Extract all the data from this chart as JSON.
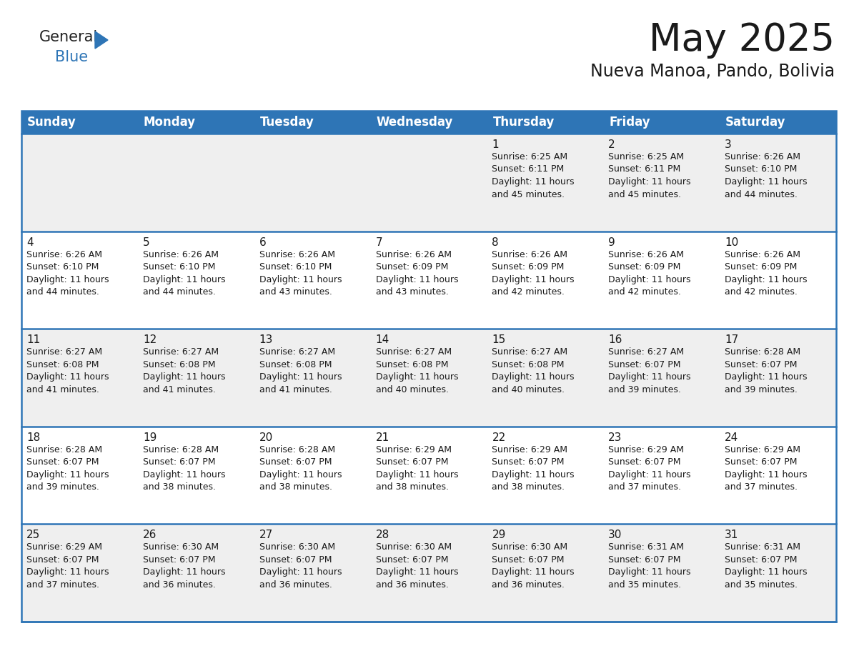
{
  "title": "May 2025",
  "subtitle": "Nueva Manoa, Pando, Bolivia",
  "header_bg": "#2E75B6",
  "header_text": "#FFFFFF",
  "row_bg_light": "#EFEFEF",
  "row_bg_white": "#FFFFFF",
  "border_color": "#2E75B6",
  "text_color": "#1a1a1a",
  "days_of_week": [
    "Sunday",
    "Monday",
    "Tuesday",
    "Wednesday",
    "Thursday",
    "Friday",
    "Saturday"
  ],
  "calendar_data": [
    [
      "",
      "",
      "",
      "",
      "1\nSunrise: 6:25 AM\nSunset: 6:11 PM\nDaylight: 11 hours\nand 45 minutes.",
      "2\nSunrise: 6:25 AM\nSunset: 6:11 PM\nDaylight: 11 hours\nand 45 minutes.",
      "3\nSunrise: 6:26 AM\nSunset: 6:10 PM\nDaylight: 11 hours\nand 44 minutes."
    ],
    [
      "4\nSunrise: 6:26 AM\nSunset: 6:10 PM\nDaylight: 11 hours\nand 44 minutes.",
      "5\nSunrise: 6:26 AM\nSunset: 6:10 PM\nDaylight: 11 hours\nand 44 minutes.",
      "6\nSunrise: 6:26 AM\nSunset: 6:10 PM\nDaylight: 11 hours\nand 43 minutes.",
      "7\nSunrise: 6:26 AM\nSunset: 6:09 PM\nDaylight: 11 hours\nand 43 minutes.",
      "8\nSunrise: 6:26 AM\nSunset: 6:09 PM\nDaylight: 11 hours\nand 42 minutes.",
      "9\nSunrise: 6:26 AM\nSunset: 6:09 PM\nDaylight: 11 hours\nand 42 minutes.",
      "10\nSunrise: 6:26 AM\nSunset: 6:09 PM\nDaylight: 11 hours\nand 42 minutes."
    ],
    [
      "11\nSunrise: 6:27 AM\nSunset: 6:08 PM\nDaylight: 11 hours\nand 41 minutes.",
      "12\nSunrise: 6:27 AM\nSunset: 6:08 PM\nDaylight: 11 hours\nand 41 minutes.",
      "13\nSunrise: 6:27 AM\nSunset: 6:08 PM\nDaylight: 11 hours\nand 41 minutes.",
      "14\nSunrise: 6:27 AM\nSunset: 6:08 PM\nDaylight: 11 hours\nand 40 minutes.",
      "15\nSunrise: 6:27 AM\nSunset: 6:08 PM\nDaylight: 11 hours\nand 40 minutes.",
      "16\nSunrise: 6:27 AM\nSunset: 6:07 PM\nDaylight: 11 hours\nand 39 minutes.",
      "17\nSunrise: 6:28 AM\nSunset: 6:07 PM\nDaylight: 11 hours\nand 39 minutes."
    ],
    [
      "18\nSunrise: 6:28 AM\nSunset: 6:07 PM\nDaylight: 11 hours\nand 39 minutes.",
      "19\nSunrise: 6:28 AM\nSunset: 6:07 PM\nDaylight: 11 hours\nand 38 minutes.",
      "20\nSunrise: 6:28 AM\nSunset: 6:07 PM\nDaylight: 11 hours\nand 38 minutes.",
      "21\nSunrise: 6:29 AM\nSunset: 6:07 PM\nDaylight: 11 hours\nand 38 minutes.",
      "22\nSunrise: 6:29 AM\nSunset: 6:07 PM\nDaylight: 11 hours\nand 38 minutes.",
      "23\nSunrise: 6:29 AM\nSunset: 6:07 PM\nDaylight: 11 hours\nand 37 minutes.",
      "24\nSunrise: 6:29 AM\nSunset: 6:07 PM\nDaylight: 11 hours\nand 37 minutes."
    ],
    [
      "25\nSunrise: 6:29 AM\nSunset: 6:07 PM\nDaylight: 11 hours\nand 37 minutes.",
      "26\nSunrise: 6:30 AM\nSunset: 6:07 PM\nDaylight: 11 hours\nand 36 minutes.",
      "27\nSunrise: 6:30 AM\nSunset: 6:07 PM\nDaylight: 11 hours\nand 36 minutes.",
      "28\nSunrise: 6:30 AM\nSunset: 6:07 PM\nDaylight: 11 hours\nand 36 minutes.",
      "29\nSunrise: 6:30 AM\nSunset: 6:07 PM\nDaylight: 11 hours\nand 36 minutes.",
      "30\nSunrise: 6:31 AM\nSunset: 6:07 PM\nDaylight: 11 hours\nand 35 minutes.",
      "31\nSunrise: 6:31 AM\nSunset: 6:07 PM\nDaylight: 11 hours\nand 35 minutes."
    ]
  ],
  "title_fontsize": 38,
  "subtitle_fontsize": 17,
  "dow_fontsize": 12,
  "cell_num_fontsize": 11,
  "cell_text_fontsize": 9,
  "logo_fontsize_general": 15,
  "logo_fontsize_blue": 15,
  "logo_color_general": "#222222",
  "logo_color_blue": "#2E75B6",
  "fig_width": 11.88,
  "fig_height": 9.18,
  "dpi": 100
}
